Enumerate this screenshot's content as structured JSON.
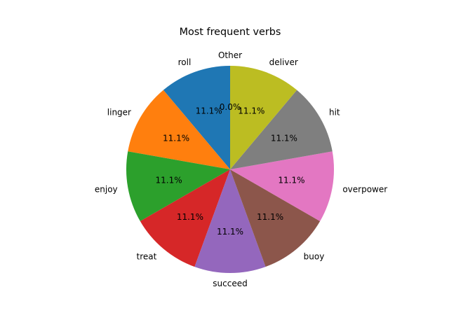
{
  "chart_data": {
    "type": "pie",
    "title": "Most frequent verbs",
    "categories": [
      "roll",
      "linger",
      "enjoy",
      "treat",
      "succeed",
      "buoy",
      "overpower",
      "hit",
      "deliver",
      "Other"
    ],
    "values": [
      11.1,
      11.1,
      11.1,
      11.1,
      11.1,
      11.1,
      11.1,
      11.1,
      11.1,
      0.0
    ],
    "percent_labels": [
      "11.1%",
      "11.1%",
      "11.1%",
      "11.1%",
      "11.1%",
      "11.1%",
      "11.1%",
      "11.1%",
      "11.1%",
      "0.0%"
    ],
    "colors": [
      "#1f77b4",
      "#ff7f0e",
      "#2ca02c",
      "#d62728",
      "#9467bd",
      "#8c564b",
      "#e377c2",
      "#7f7f7f",
      "#bcbd22",
      "#17becf"
    ],
    "start_angle_deg": 90,
    "direction": "counterclockwise",
    "legend": "none"
  }
}
